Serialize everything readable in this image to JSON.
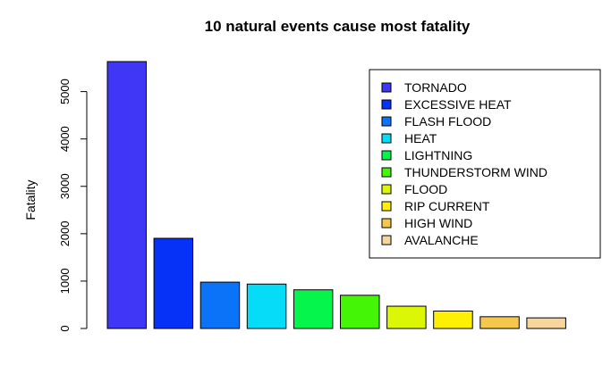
{
  "chart_data": {
    "type": "bar",
    "title": "10 natural events cause most fatality",
    "xlabel": "",
    "ylabel": "Fatality",
    "ylim": [
      0,
      5633
    ],
    "yticks": [
      0,
      1000,
      2000,
      3000,
      4000,
      5000
    ],
    "grid": false,
    "legend_position": "top-right",
    "categories": [
      "TORNADO",
      "EXCESSIVE HEAT",
      "FLASH FLOOD",
      "HEAT",
      "LIGHTNING",
      "THUNDERSTORM WIND",
      "FLOOD",
      "RIP CURRENT",
      "HIGH WIND",
      "AVALANCHE"
    ],
    "values": [
      5633,
      1903,
      978,
      937,
      816,
      701,
      470,
      368,
      248,
      224
    ],
    "colors": [
      "#3f36f6",
      "#0631f7",
      "#0a73f8",
      "#06dbf8",
      "#06f54c",
      "#45f506",
      "#dcf705",
      "#fef005",
      "#f5c84c",
      "#f6d69c"
    ]
  }
}
